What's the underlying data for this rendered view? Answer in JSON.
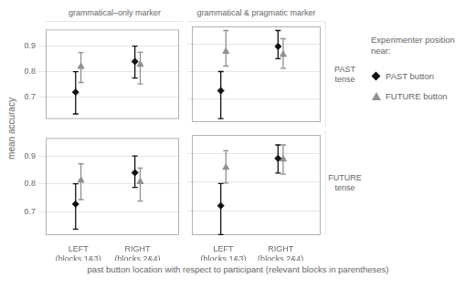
{
  "chart_data": {
    "type": "scatter",
    "xlabel": "past button location with respect to participant (relevant blocks in parentheses)",
    "ylabel": "mean accuracy",
    "legend_title": "Experimenter position\nnear:",
    "legend": "right",
    "grid": true,
    "col_labels": [
      "grammatical–only marker",
      "grammatical & pragmatic marker"
    ],
    "row_labels": [
      "PAST\ntense",
      "FUTURE\ntense"
    ],
    "categories": [
      "LEFT\n(blocks 1&3)",
      "RIGHT\n(blocks 2&4)"
    ],
    "ylim": [
      0.615,
      0.965
    ],
    "yticks": [
      0.7,
      0.8,
      0.9
    ],
    "series": [
      {
        "name": "PAST button",
        "color": "#111111",
        "marker": "diamond"
      },
      {
        "name": "FUTURE button",
        "color": "#909090",
        "marker": "triangle"
      }
    ],
    "panels": [
      [
        {
          "series": [
            {
              "values": [
                0.72,
                0.84
              ],
              "lo": [
                0.635,
                0.775
              ],
              "hi": [
                0.8,
                0.9
              ]
            },
            {
              "values": [
                0.82,
                0.828
              ],
              "lo": [
                0.758,
                0.752
              ],
              "hi": [
                0.875,
                0.876
              ]
            }
          ]
        },
        {
          "series": [
            {
              "values": [
                0.73,
                0.892
              ],
              "lo": [
                0.628,
                0.847
              ],
              "hi": [
                0.8,
                0.95
              ]
            },
            {
              "values": [
                0.873,
                0.862
              ],
              "lo": [
                0.82,
                0.812
              ],
              "hi": [
                0.95,
                0.92
              ]
            }
          ]
        }
      ],
      [
        {
          "series": [
            {
              "values": [
                0.727,
                0.84
              ],
              "lo": [
                0.637,
                0.787
              ],
              "hi": [
                0.8,
                0.9
              ]
            },
            {
              "values": [
                0.812,
                0.807
              ],
              "lo": [
                0.743,
                0.738
              ],
              "hi": [
                0.872,
                0.857
              ]
            }
          ]
        },
        {
          "series": [
            {
              "values": [
                0.718,
                0.883
              ],
              "lo": [
                0.617,
                0.832
              ],
              "hi": [
                0.795,
                0.93
              ]
            },
            {
              "values": [
                0.851,
                0.88
              ],
              "lo": [
                0.797,
                0.828
              ],
              "hi": [
                0.91,
                0.93
              ]
            }
          ]
        }
      ]
    ]
  }
}
